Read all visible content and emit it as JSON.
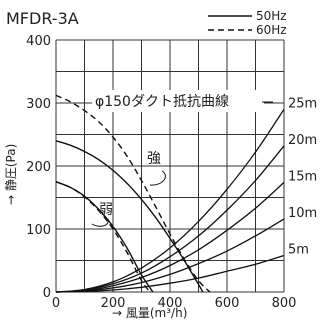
{
  "chart_data": {
    "type": "line",
    "title": "MFDR-3A",
    "xlabel": "→ 風量(m³/h)",
    "ylabel": "→ 静圧(Pa)",
    "xlim": [
      0,
      800
    ],
    "ylim": [
      0,
      400
    ],
    "x_ticks": [
      "0",
      "200",
      "400",
      "600",
      "800"
    ],
    "y_ticks": [
      "0",
      "100",
      "200",
      "300",
      "400"
    ],
    "grid": true,
    "legend": {
      "position": "top-right",
      "entries": [
        {
          "label": "50Hz",
          "style": "solid"
        },
        {
          "label": "60Hz",
          "style": "dashed"
        }
      ]
    },
    "annotations": {
      "duct_title": "φ150ダクト抵抗曲線",
      "strong": "強",
      "weak": "弱"
    },
    "series": [
      {
        "style": "solid",
        "x": [
          0,
          50,
          100,
          150,
          200,
          250,
          300,
          350,
          400,
          450,
          500,
          515
        ],
        "y": [
          240,
          233,
          223,
          210,
          193,
          172,
          147,
          118,
          85,
          50,
          12,
          0
        ]
      },
      {
        "style": "dashed",
        "x": [
          0,
          50,
          100,
          150,
          200,
          250,
          300,
          350,
          400,
          450,
          500,
          540
        ],
        "y": [
          312,
          302,
          288,
          270,
          246,
          215,
          177,
          135,
          92,
          52,
          18,
          0
        ]
      },
      {
        "style": "solid",
        "x": [
          0,
          50,
          100,
          150,
          200,
          250,
          300,
          340
        ],
        "y": [
          175,
          166,
          152,
          131,
          104,
          69,
          27,
          0
        ]
      },
      {
        "style": "dashed",
        "x": [
          0,
          50,
          100,
          150,
          200,
          250,
          300,
          330
        ],
        "y": [
          175,
          166,
          151,
          129,
          100,
          62,
          18,
          0
        ]
      }
    ],
    "duct_curves": [
      {
        "label": "25m",
        "x": [
          100,
          200,
          300,
          400,
          500,
          600,
          700,
          800
        ],
        "y": [
          4,
          16,
          38,
          70,
          112,
          163,
          222,
          290
        ]
      },
      {
        "label": "20m",
        "x": [
          100,
          200,
          300,
          400,
          500,
          600,
          700,
          800
        ],
        "y": [
          3,
          13,
          30,
          56,
          89,
          130,
          177,
          232
        ]
      },
      {
        "label": "15m",
        "x": [
          100,
          200,
          300,
          400,
          500,
          600,
          700,
          800
        ],
        "y": [
          2,
          10,
          23,
          42,
          67,
          98,
          133,
          174
        ]
      },
      {
        "label": "10m",
        "x": [
          100,
          200,
          300,
          400,
          500,
          600,
          700,
          800
        ],
        "y": [
          1.5,
          6.5,
          15,
          28,
          45,
          65,
          89,
          116
        ]
      },
      {
        "label": "5m",
        "x": [
          100,
          200,
          300,
          400,
          500,
          600,
          700,
          800
        ],
        "y": [
          0.8,
          3.2,
          7.5,
          14,
          22,
          33,
          44,
          58
        ]
      }
    ]
  }
}
